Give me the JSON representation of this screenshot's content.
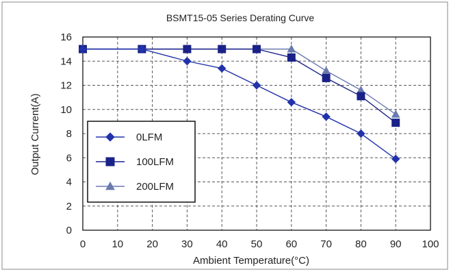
{
  "chart_data": {
    "type": "line",
    "title": "BSMT15-05 Series Derating Curve",
    "xlabel": "Ambient Temperature(°C)",
    "ylabel": "Output Current(A)",
    "xlim": [
      0,
      100
    ],
    "ylim": [
      0,
      16
    ],
    "xticks": [
      0,
      10,
      20,
      30,
      40,
      50,
      60,
      70,
      80,
      90,
      100
    ],
    "yticks": [
      0,
      2,
      4,
      6,
      8,
      10,
      12,
      14,
      16
    ],
    "grid": true,
    "legend_position": "left",
    "series": [
      {
        "name": "0LFM",
        "marker": "diamond",
        "color": "#2233aa",
        "x": [
          0,
          17,
          30,
          40,
          50,
          60,
          70,
          80,
          90
        ],
        "y": [
          15,
          15,
          14.0,
          13.4,
          12.0,
          10.6,
          9.4,
          8.0,
          5.9
        ]
      },
      {
        "name": "100LFM",
        "marker": "square",
        "color": "#1a2288",
        "x": [
          0,
          17,
          30,
          40,
          50,
          60,
          70,
          80,
          90
        ],
        "y": [
          15,
          15,
          15,
          15,
          15,
          14.3,
          12.6,
          11.1,
          8.9
        ]
      },
      {
        "name": "200LFM",
        "marker": "triangle",
        "color": "#6a7ab0",
        "x": [
          0,
          17,
          30,
          40,
          50,
          60,
          70,
          80,
          90
        ],
        "y": [
          15,
          15,
          15,
          15,
          15,
          15.0,
          13.2,
          11.6,
          9.6
        ]
      }
    ]
  }
}
